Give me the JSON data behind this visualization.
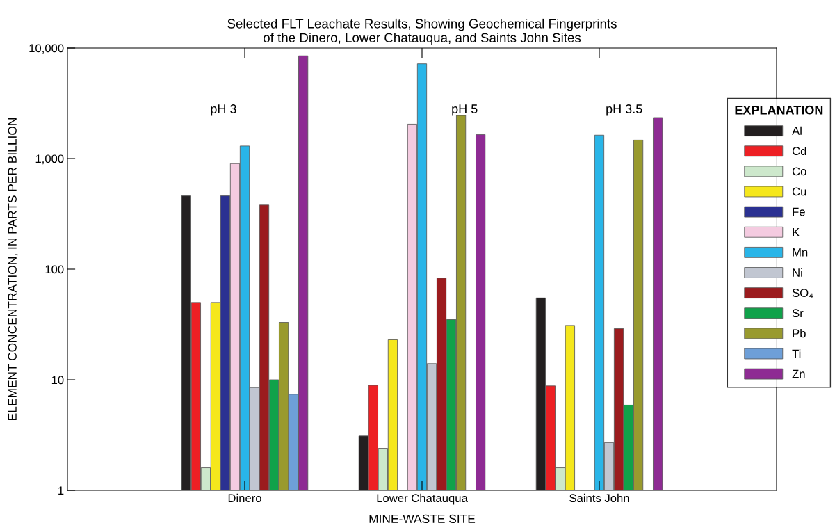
{
  "chart_data": {
    "type": "bar",
    "title": "Selected FLT Leachate Results, Showing Geochemical Fingerprints\nof the Dinero, Lower Chatauqua, and Saints John Sites",
    "xlabel": "MINE-WASTE SITE",
    "ylabel": "ELEMENT CONCENTRATION, IN PARTS PER BILLION",
    "legend_title": "EXPLANATION",
    "categories": [
      "Dinero",
      "Lower Chatauqua",
      "Saints John"
    ],
    "series": [
      {
        "name": "Al",
        "color": "#231f20",
        "values": [
          460,
          3.1,
          55
        ]
      },
      {
        "name": "Cd",
        "color": "#ed2024",
        "values": [
          50,
          8.9,
          8.8
        ]
      },
      {
        "name": "Co",
        "color": "#cde8cc",
        "values": [
          1.6,
          2.4,
          1.6
        ]
      },
      {
        "name": "Cu",
        "color": "#f5e71c",
        "values": [
          50,
          23,
          31
        ]
      },
      {
        "name": "Fe",
        "color": "#2b3192",
        "values": [
          460,
          null,
          null
        ]
      },
      {
        "name": "K",
        "color": "#f4cbe0",
        "values": [
          900,
          2050,
          null
        ]
      },
      {
        "name": "Mn",
        "color": "#29b5e8",
        "values": [
          1300,
          7200,
          1630
        ]
      },
      {
        "name": "Ni",
        "color": "#c1c6d1",
        "values": [
          8.5,
          14,
          2.7
        ]
      },
      {
        "name": "SO₄",
        "color": "#9b1b1e",
        "values": [
          380,
          83,
          29
        ]
      },
      {
        "name": "Sr",
        "color": "#10a24a",
        "values": [
          10,
          35,
          5.9
        ]
      },
      {
        "name": "Pb",
        "color": "#999a2e",
        "values": [
          33,
          2450,
          1470
        ]
      },
      {
        "name": "Ti",
        "color": "#6e9fd8",
        "values": [
          7.4,
          null,
          null
        ]
      },
      {
        "name": "Zn",
        "color": "#8e2b93",
        "values": [
          8500,
          1650,
          2350
        ]
      }
    ],
    "annotations": [
      "pH 3",
      "pH 5",
      "pH 3.5"
    ],
    "log": "y",
    "ylim": [
      1,
      10000
    ],
    "yticks": [
      1,
      10,
      100,
      {
        "value": 1000,
        "label": "1,000"
      },
      {
        "value": 10000,
        "label": "10,000"
      }
    ],
    "grid": false,
    "legend": "right"
  }
}
